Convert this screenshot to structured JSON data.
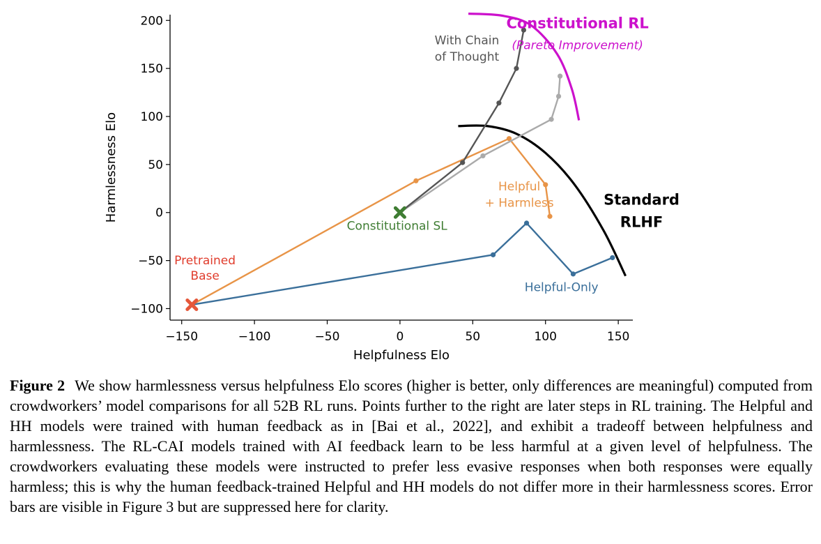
{
  "chart_data": {
    "type": "line",
    "xlabel": "Helpfulness Elo",
    "ylabel": "Harmlessness Elo",
    "xlim": [
      -158,
      160
    ],
    "ylim": [
      -112,
      206
    ],
    "x_ticks": [
      -150,
      -100,
      -50,
      0,
      50,
      100,
      150
    ],
    "y_ticks": [
      -100,
      -50,
      0,
      50,
      100,
      150,
      200
    ],
    "x_tick_labels": [
      "−150",
      "−100",
      "−50",
      "0",
      "50",
      "100",
      "150"
    ],
    "y_tick_labels": [
      "−100",
      "−50",
      "0",
      "50",
      "100",
      "150",
      "200"
    ],
    "grid": false,
    "series": [
      {
        "name": "Helpful-Only",
        "color": "#3a6f9a",
        "x": [
          -143,
          64,
          87,
          119,
          146
        ],
        "y": [
          -96,
          -44,
          -11,
          -64,
          -47
        ]
      },
      {
        "name": "Helpful + Harmless",
        "color": "#e89447",
        "x": [
          -143,
          11,
          75,
          100,
          103
        ],
        "y": [
          -96,
          33,
          77,
          29,
          -4
        ]
      },
      {
        "name": "",
        "color": "#aaaaaa",
        "x": [
          0,
          57,
          104,
          109,
          110
        ],
        "y": [
          0,
          59,
          97,
          121,
          142
        ]
      },
      {
        "name": "With Chain of Thought",
        "color": "#555555",
        "x": [
          0,
          43,
          68,
          80,
          85
        ],
        "y": [
          0,
          52,
          114,
          150,
          190
        ]
      }
    ],
    "markers": [
      {
        "name": "Pretrained Base",
        "x": -143,
        "y": -96,
        "color": "#e5573a",
        "symbol": "X"
      },
      {
        "name": "Constitutional SL",
        "x": 0,
        "y": 0,
        "color": "#3f7d33",
        "symbol": "X"
      }
    ],
    "frontiers": [
      {
        "name": "Standard RLHF",
        "color": "#000000",
        "x": [
          40,
          60,
          80,
          100,
          120,
          140,
          155
        ],
        "y": [
          90,
          90,
          82,
          62,
          29,
          -19,
          -66
        ]
      },
      {
        "name": "Constitutional RL (Pareto Improvement)",
        "color": "#cc11cc",
        "x": [
          47,
          70,
          90,
          108,
          118,
          123
        ],
        "y": [
          207,
          205,
          195,
          165,
          129,
          96
        ]
      }
    ],
    "annotations": [
      {
        "id": "constitutional_rl_title",
        "text": "Constitutional RL",
        "x": 122,
        "y": 192,
        "color": "#cc11cc",
        "bold": true,
        "italic": false
      },
      {
        "id": "constitutional_rl_sub",
        "text": "(Pareto Improvement)",
        "x": 122,
        "y": 170,
        "color": "#cc11cc",
        "bold": false,
        "italic": true
      },
      {
        "id": "chain_of_thought_1",
        "text": "With Chain",
        "x": 46,
        "y": 175,
        "color": "#555555",
        "bold": false,
        "italic": false
      },
      {
        "id": "chain_of_thought_2",
        "text": "of Thought",
        "x": 46,
        "y": 158,
        "color": "#555555",
        "bold": false,
        "italic": false
      },
      {
        "id": "helpful_harmless_1",
        "text": "Helpful",
        "x": 82,
        "y": 23,
        "color": "#e89447",
        "bold": false,
        "italic": false
      },
      {
        "id": "helpful_harmless_2",
        "text": "+ Harmless",
        "x": 82,
        "y": 6,
        "color": "#e89447",
        "bold": false,
        "italic": false
      },
      {
        "id": "standard_rlhf_1",
        "text": "Standard",
        "x": 166,
        "y": 8,
        "color": "#000000",
        "bold": true,
        "italic": false
      },
      {
        "id": "standard_rlhf_2",
        "text": "RLHF",
        "x": 166,
        "y": -15,
        "color": "#000000",
        "bold": true,
        "italic": false
      },
      {
        "id": "constitutional_sl",
        "text": "Constitutional SL",
        "x": -2,
        "y": -18,
        "color": "#3f7d33",
        "bold": false,
        "italic": false
      },
      {
        "id": "pretrained_base_1",
        "text": "Pretrained",
        "x": -134,
        "y": -54,
        "color": "#e03c2c",
        "bold": false,
        "italic": false
      },
      {
        "id": "pretrained_base_2",
        "text": "Base",
        "x": -134,
        "y": -70,
        "color": "#e03c2c",
        "bold": false,
        "italic": false
      },
      {
        "id": "helpful_only",
        "text": "Helpful-Only",
        "x": 111,
        "y": -82,
        "color": "#3a6f9a",
        "bold": false,
        "italic": false
      }
    ]
  },
  "caption": {
    "label": "Figure 2",
    "text": "We show harmlessness versus helpfulness Elo scores (higher is better, only differences are meaningful) computed from crowdworkers’ model comparisons for all 52B RL runs. Points further to the right are later steps in RL training. The Helpful and HH models were trained with human feedback as in [Bai et al., 2022], and exhibit a tradeoff between helpfulness and harmlessness. The RL-CAI models trained with AI feedback learn to be less harmful at a given level of helpfulness. The crowdworkers evaluating these models were instructed to prefer less evasive responses when both responses were equally harmless; this is why the human feedback-trained Helpful and HH models do not differ more in their harmlessness scores. Error bars are visible in Figure 3 but are suppressed here for clarity."
  }
}
